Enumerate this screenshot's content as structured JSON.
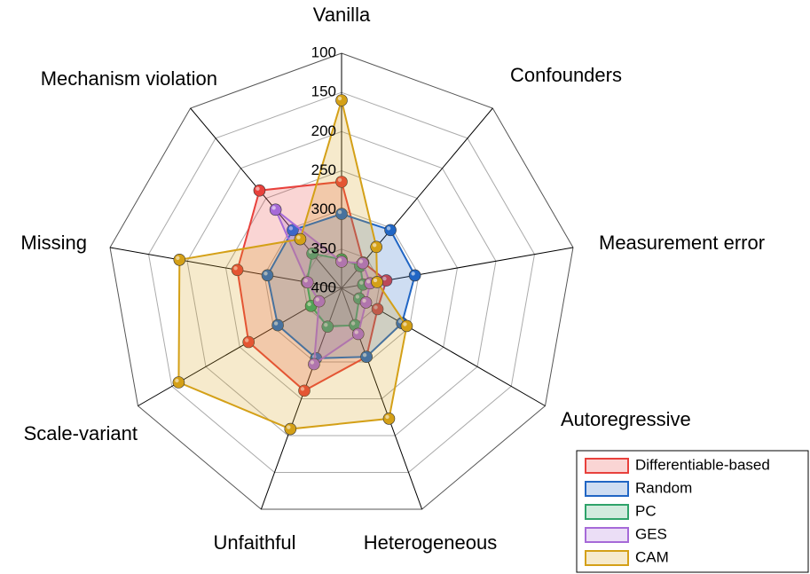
{
  "chart_data": {
    "type": "radar",
    "categories": [
      "Vanilla",
      "Confounders",
      "Measurement error",
      "Autoregressive",
      "Heterogeneous",
      "Unfaithful",
      "Scale-variant",
      "Missing",
      "Mechanism violation"
    ],
    "ylim": [
      400,
      100
    ],
    "yticks": [
      100,
      150,
      200,
      250,
      300,
      350,
      400
    ],
    "legend": "lower right",
    "series": [
      {
        "name": "Differentiable-based",
        "color": "#e8413c",
        "values": [
          264,
          357,
          342,
          347,
          307,
          261,
          263,
          265,
          237
        ]
      },
      {
        "name": "Random",
        "color": "#2166c4",
        "values": [
          305,
          303,
          305,
          311,
          307,
          305,
          306,
          304,
          303
        ]
      },
      {
        "name": "PC",
        "color": "#2ea36a",
        "values": [
          363,
          363,
          372,
          374,
          350,
          348,
          355,
          355,
          342
        ]
      },
      {
        "name": "GES",
        "color": "#a66ad8",
        "values": [
          366,
          358,
          363,
          364,
          338,
          297,
          367,
          356,
          269
        ]
      },
      {
        "name": "CAM",
        "color": "#d4a017",
        "values": [
          160,
          331,
          354,
          304,
          223,
          209,
          160,
          190,
          318
        ]
      }
    ]
  }
}
